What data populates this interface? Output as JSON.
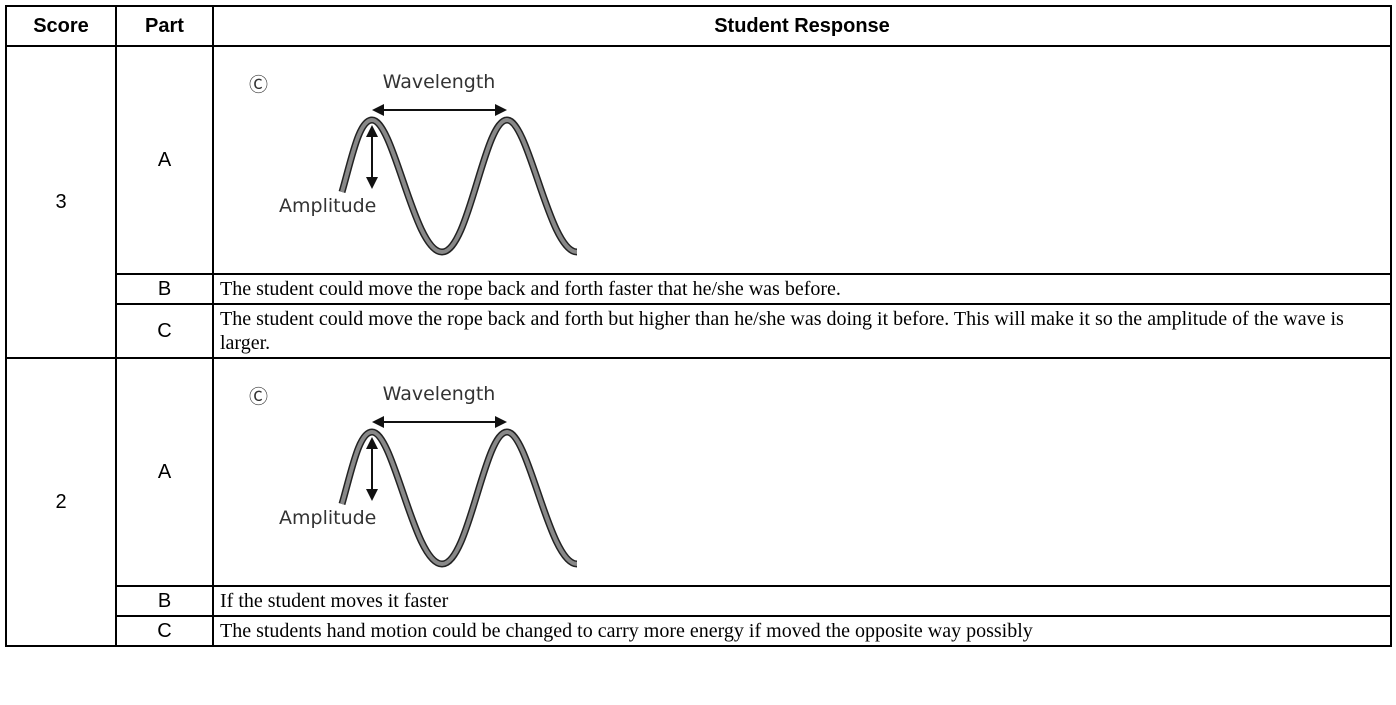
{
  "header": [
    "Score",
    "Part",
    "Student Response"
  ],
  "rows": [
    {
      "score": "3",
      "parts": [
        {
          "part": "A",
          "diagram": {
            "marker": "Ⓒ",
            "wavelength": "Wavelength",
            "amplitude": "Amplitude"
          }
        },
        {
          "part": "B",
          "response": "The student could move the rope back and forth faster that he/she was before."
        },
        {
          "part": "C",
          "response": "The student could move the rope back and forth but higher than he/she was doing it before.  This will make it so the amplitude of the wave is larger."
        }
      ]
    },
    {
      "score": "2",
      "parts": [
        {
          "part": "A",
          "diagram": {
            "marker": "Ⓒ",
            "wavelength": "Wavelength",
            "amplitude": "Amplitude"
          }
        },
        {
          "part": "B",
          "response": "If the student moves it faster"
        },
        {
          "part": "C",
          "response": "The students hand motion could be changed to carry more energy if moved the opposite way possibly"
        }
      ]
    }
  ]
}
